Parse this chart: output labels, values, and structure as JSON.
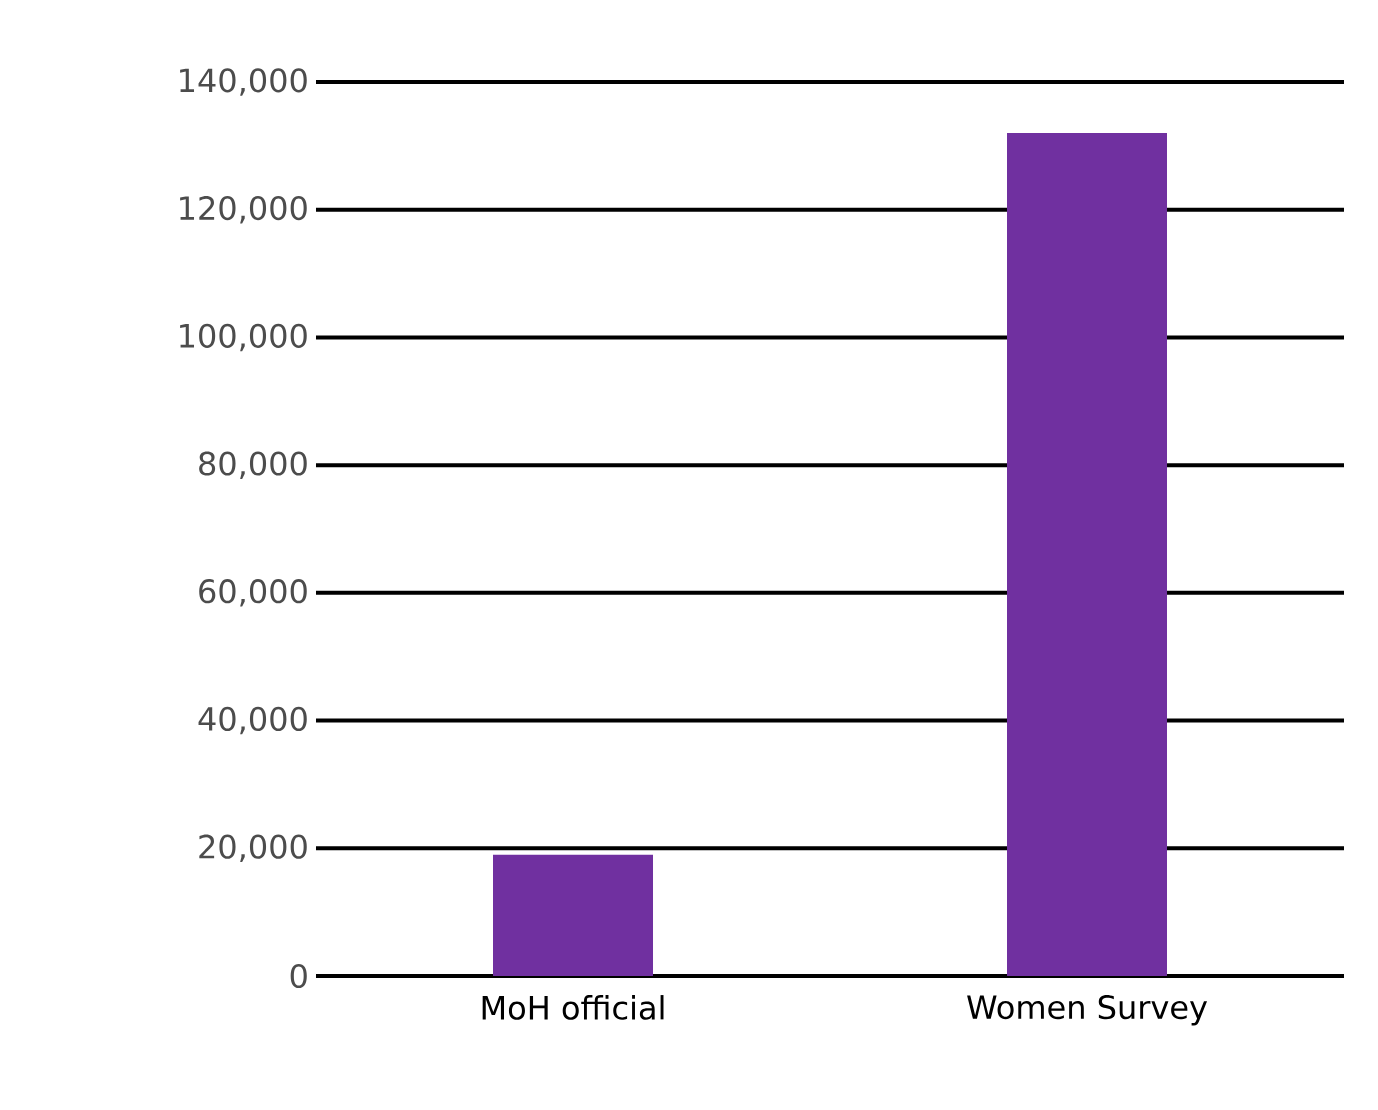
{
  "chart_data": {
    "type": "bar",
    "categories": [
      "MoH official",
      "Women Survey"
    ],
    "values": [
      19000,
      132000
    ],
    "color": "#7030a0",
    "ylim": [
      0,
      140000
    ],
    "yticks": [
      {
        "value": 0,
        "label": "0"
      },
      {
        "value": 20000,
        "label": "20,000"
      },
      {
        "value": 40000,
        "label": "40,000"
      },
      {
        "value": 60000,
        "label": "60,000"
      },
      {
        "value": 80000,
        "label": "80,000"
      },
      {
        "value": 100000,
        "label": "100,000"
      },
      {
        "value": 120000,
        "label": "120,000"
      },
      {
        "value": 140000,
        "label": "140,000"
      }
    ],
    "grid": "y"
  }
}
